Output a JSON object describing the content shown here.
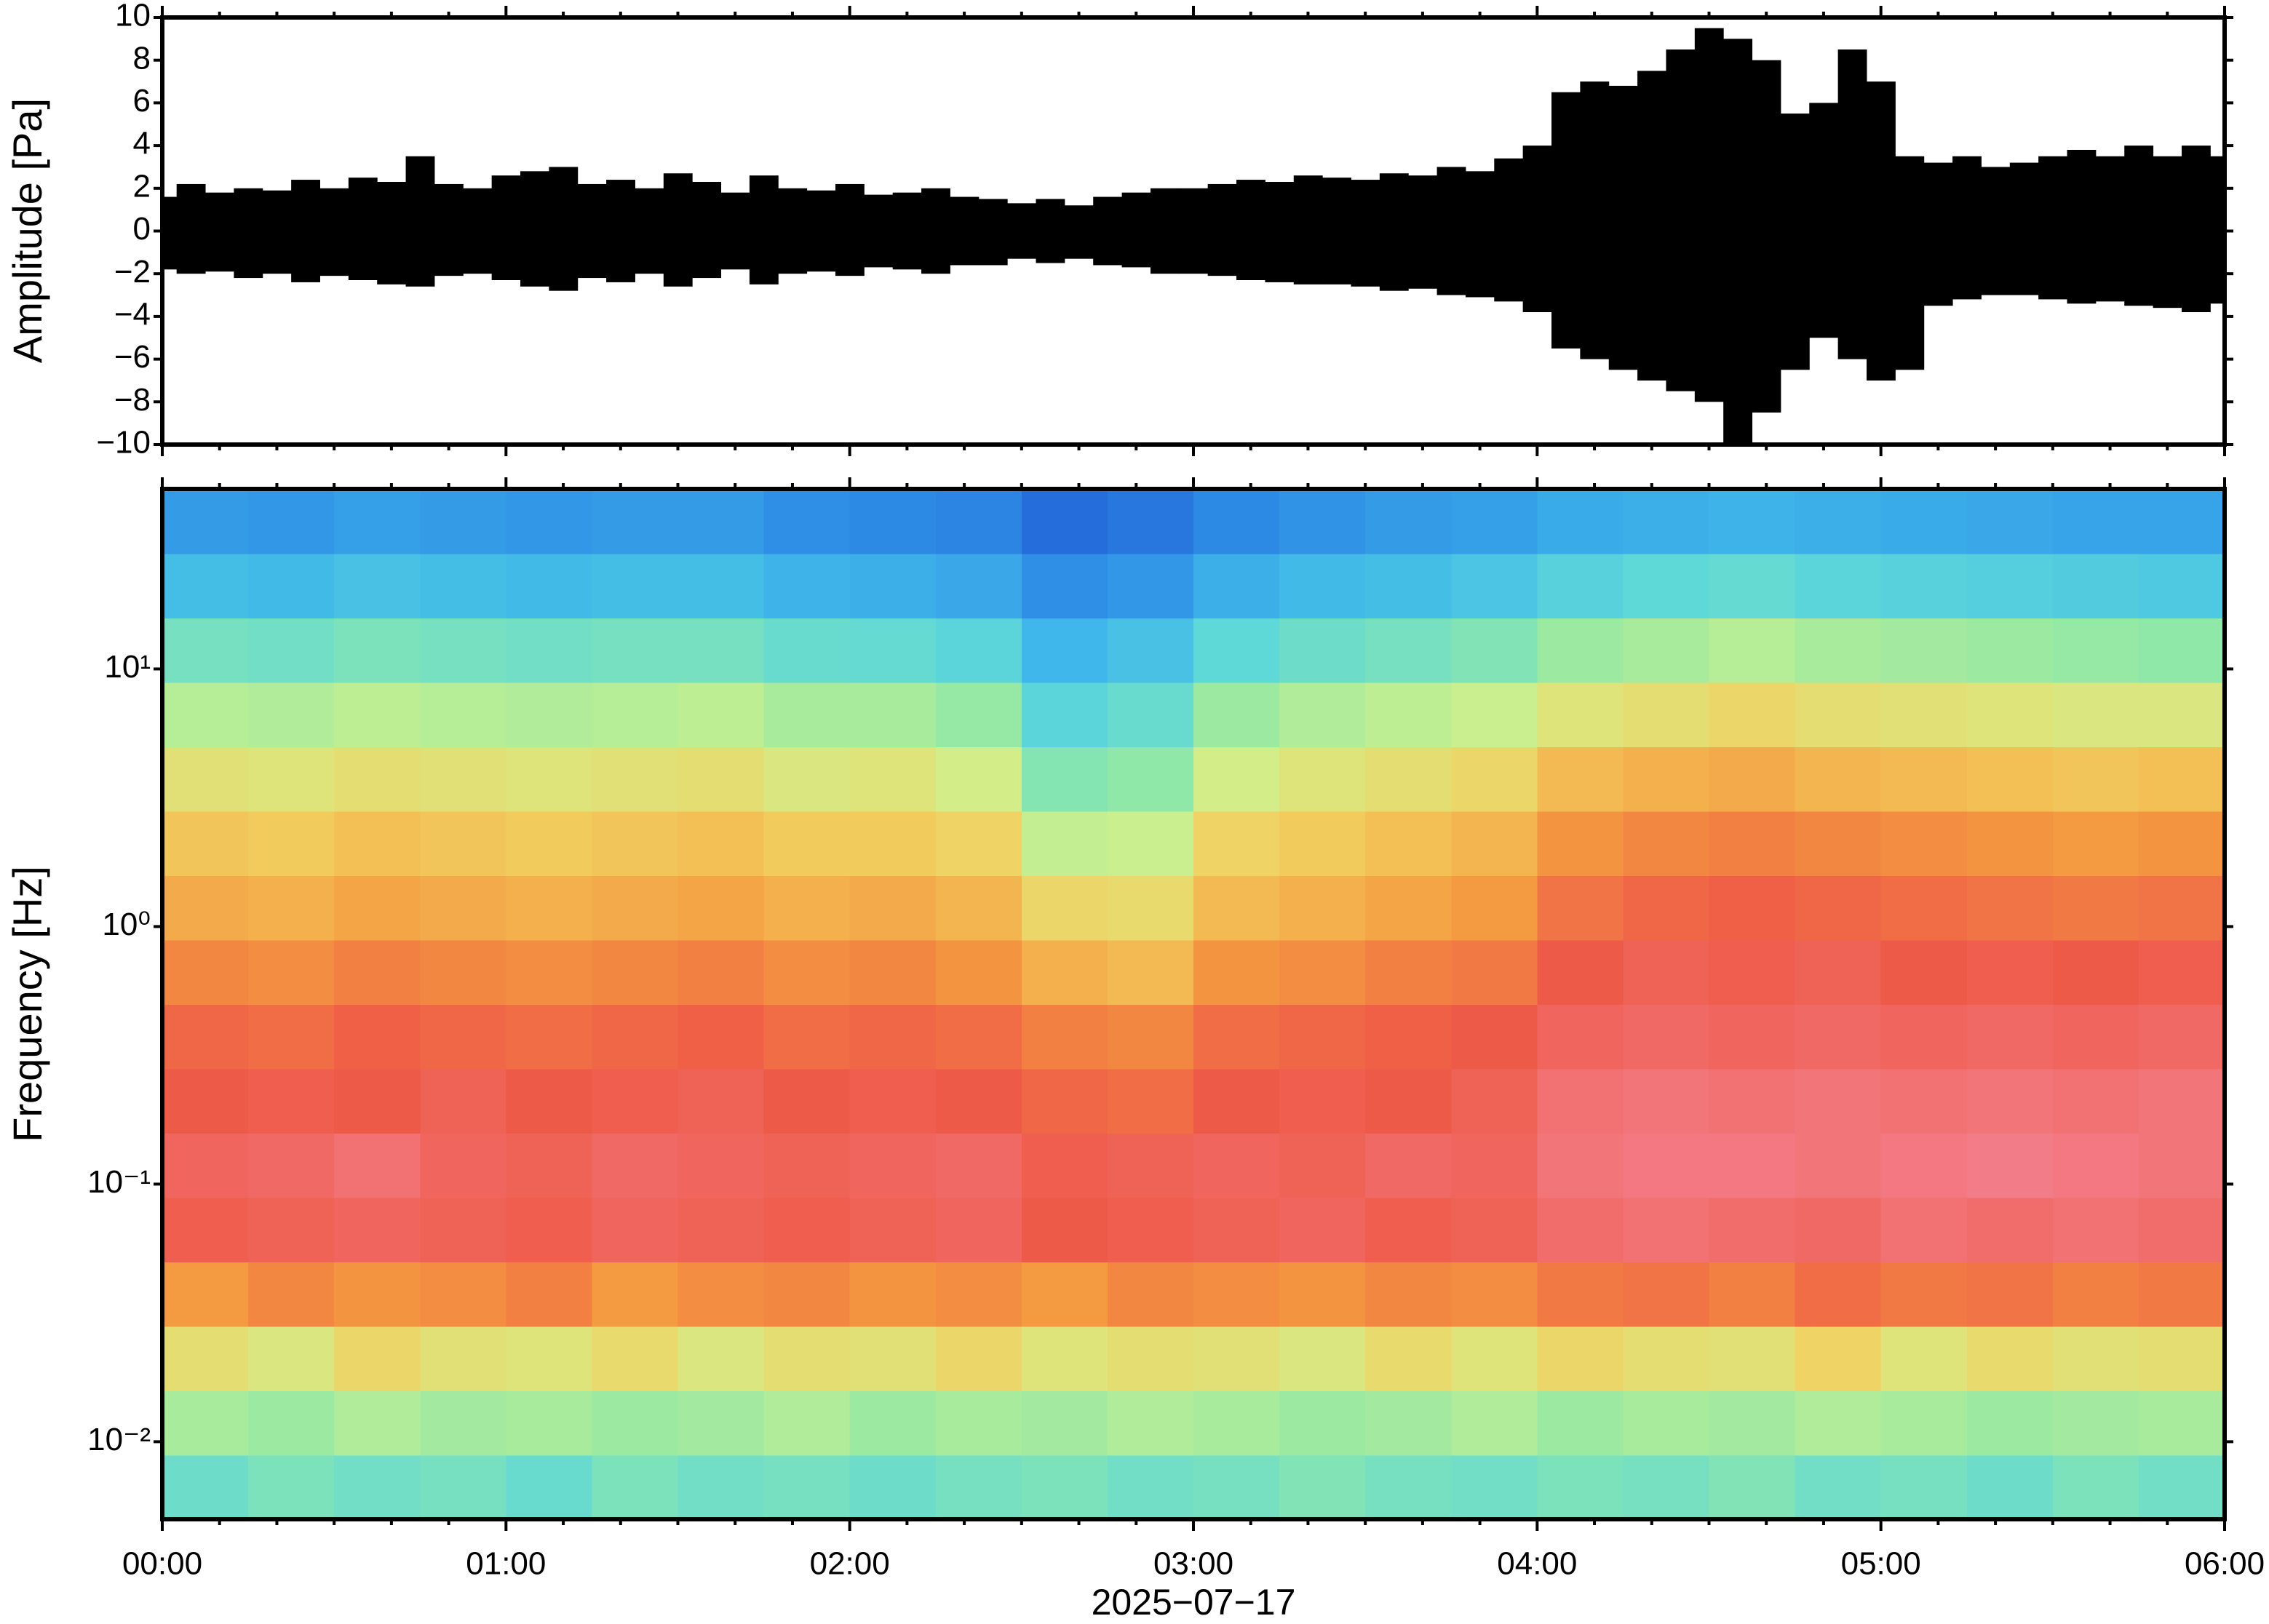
{
  "chart_data": [
    {
      "type": "waveform",
      "ylabel": "Amplitude [Pa]",
      "x": [
        0,
        5,
        10,
        15,
        20,
        25,
        30,
        35,
        40,
        45,
        50,
        55,
        60,
        65,
        70,
        75,
        80,
        85,
        90,
        95,
        100,
        105,
        110,
        115,
        120,
        125,
        130,
        135,
        140,
        145,
        150,
        155,
        160,
        165,
        170,
        175,
        180,
        185,
        190,
        195,
        200,
        205,
        210,
        215,
        220,
        225,
        230,
        235,
        240,
        245,
        250,
        255,
        260,
        265,
        270,
        275,
        280,
        285,
        290,
        295,
        300,
        305,
        310,
        315,
        320,
        325,
        330,
        335,
        340,
        345,
        350,
        355,
        360
      ],
      "series": [
        {
          "color": "#000000",
          "values": [
            1.6,
            2.2,
            1.8,
            2.0,
            1.9,
            2.4,
            2.0,
            2.5,
            2.3,
            3.5,
            2.2,
            2.0,
            2.6,
            2.8,
            3.0,
            2.2,
            2.4,
            2.0,
            2.7,
            2.3,
            1.8,
            2.6,
            2.0,
            1.9,
            2.2,
            1.7,
            1.8,
            2.0,
            1.6,
            1.5,
            1.3,
            1.5,
            1.2,
            1.6,
            1.8,
            2.0,
            2.0,
            2.2,
            2.4,
            2.3,
            2.6,
            2.5,
            2.4,
            2.7,
            2.6,
            3.0,
            2.8,
            3.4,
            4.0,
            6.5,
            7.0,
            6.8,
            7.5,
            8.5,
            9.5,
            9.0,
            8.0,
            5.5,
            6.0,
            8.5,
            7.0,
            3.5,
            3.2,
            3.5,
            3.0,
            3.2,
            3.5,
            3.8,
            3.5,
            4.0,
            3.5,
            4.0,
            3.5
          ]
        },
        {
          "color": "#000000",
          "values": [
            -1.8,
            -2.0,
            -1.9,
            -2.2,
            -2.0,
            -2.4,
            -2.1,
            -2.3,
            -2.5,
            -2.6,
            -2.1,
            -2.0,
            -2.3,
            -2.6,
            -2.8,
            -2.2,
            -2.4,
            -2.0,
            -2.6,
            -2.2,
            -1.8,
            -2.5,
            -2.0,
            -1.9,
            -2.1,
            -1.7,
            -1.8,
            -2.0,
            -1.6,
            -1.6,
            -1.3,
            -1.5,
            -1.3,
            -1.6,
            -1.7,
            -2.0,
            -2.0,
            -2.1,
            -2.3,
            -2.4,
            -2.5,
            -2.5,
            -2.6,
            -2.8,
            -2.7,
            -3.0,
            -3.1,
            -3.3,
            -3.8,
            -5.5,
            -6.0,
            -6.5,
            -7.0,
            -7.5,
            -8.0,
            -10.0,
            -8.5,
            -6.5,
            -5.0,
            -6.0,
            -7.0,
            -6.5,
            -3.5,
            -3.2,
            -3.0,
            -3.0,
            -3.2,
            -3.4,
            -3.3,
            -3.5,
            -3.6,
            -3.8,
            -3.4
          ]
        }
      ],
      "xlim": [
        0,
        360
      ],
      "xticks": [
        0,
        60,
        120,
        180,
        240,
        300,
        360
      ],
      "xminorticks": [
        10,
        20,
        30,
        40,
        50,
        70,
        80,
        90,
        100,
        110,
        130,
        140,
        150,
        160,
        170,
        190,
        200,
        210,
        220,
        230,
        250,
        260,
        270,
        280,
        290,
        310,
        320,
        330,
        340,
        350
      ],
      "ylim": [
        -10,
        10
      ],
      "yticks": [
        {
          "value": -10,
          "label": "−10"
        },
        {
          "value": -8,
          "label": "−8"
        },
        {
          "value": -6,
          "label": "−6"
        },
        {
          "value": -4,
          "label": "−4"
        },
        {
          "value": -2,
          "label": "−2"
        },
        0,
        2,
        4,
        6,
        8,
        10
      ]
    },
    {
      "type": "heatmap",
      "ylabel": "Frequency [Hz]",
      "xlabel": "2025−07−17",
      "xlim": [
        0,
        360
      ],
      "xticks": [
        {
          "value": 0,
          "label": "00:00"
        },
        {
          "value": 60,
          "label": "01:00"
        },
        {
          "value": 120,
          "label": "02:00"
        },
        {
          "value": 180,
          "label": "03:00"
        },
        {
          "value": 240,
          "label": "04:00"
        },
        {
          "value": 300,
          "label": "05:00"
        },
        {
          "value": 360,
          "label": "06:00"
        }
      ],
      "xminorticks": [
        10,
        20,
        30,
        40,
        50,
        70,
        80,
        90,
        100,
        110,
        130,
        140,
        150,
        160,
        170,
        190,
        200,
        210,
        220,
        230,
        250,
        260,
        270,
        280,
        290,
        310,
        320,
        330,
        340,
        350
      ],
      "ylim": [
        0.005,
        50
      ],
      "ylog": true,
      "yticks": [
        {
          "value": 0.01,
          "label": "10⁻²"
        },
        {
          "value": 0.1,
          "label": "10⁻¹"
        },
        {
          "value": 1,
          "label": "10⁰"
        },
        {
          "value": 10,
          "label": "10¹"
        }
      ],
      "x_edges": [
        0,
        15,
        30,
        45,
        60,
        75,
        90,
        105,
        120,
        135,
        150,
        165,
        180,
        195,
        210,
        225,
        240,
        255,
        270,
        285,
        300,
        315,
        330,
        345,
        360
      ],
      "y_edges": [
        0.005,
        0.0089,
        0.0158,
        0.0281,
        0.05,
        0.0889,
        0.158,
        0.281,
        0.5,
        0.889,
        1.58,
        2.81,
        5,
        8.89,
        15.8,
        28.1,
        50
      ],
      "colorscale": [
        "#0a1a8a",
        "#1f5fd6",
        "#2f8fe6",
        "#3fb7ea",
        "#5fd8d8",
        "#8fe8a8",
        "#d0f08c",
        "#f2d060",
        "#f49a40",
        "#ee5a48",
        "#f48090"
      ],
      "z": [
        [
          4.3,
          4.6,
          4.4,
          4.5,
          4.2,
          4.6,
          4.4,
          4.5,
          4.3,
          4.5,
          4.6,
          4.4,
          4.5,
          4.7,
          4.5,
          4.4,
          4.6,
          4.5,
          4.7,
          4.4,
          4.5,
          4.3,
          4.6,
          4.4
        ],
        [
          5.4,
          5.2,
          5.5,
          5.3,
          5.4,
          5.2,
          5.3,
          5.5,
          5.2,
          5.4,
          5.3,
          5.5,
          5.4,
          5.2,
          5.3,
          5.5,
          5.2,
          5.4,
          5.3,
          5.5,
          5.4,
          5.2,
          5.3,
          5.4
        ],
        [
          6.6,
          6.3,
          6.8,
          6.5,
          6.4,
          6.7,
          6.3,
          6.6,
          6.5,
          6.8,
          6.4,
          6.6,
          6.5,
          6.3,
          6.7,
          6.4,
          6.8,
          6.6,
          6.5,
          6.9,
          6.4,
          6.7,
          6.5,
          6.6
        ],
        [
          8.0,
          8.3,
          8.1,
          8.2,
          8.4,
          8.0,
          8.2,
          8.3,
          8.1,
          8.2,
          8.0,
          8.3,
          8.2,
          8.1,
          8.3,
          8.2,
          8.5,
          8.6,
          8.4,
          8.7,
          8.5,
          8.6,
          8.4,
          8.5
        ],
        [
          9.1,
          9.2,
          9.3,
          9.2,
          9.1,
          9.3,
          9.2,
          9.1,
          9.2,
          9.3,
          9.0,
          9.1,
          9.2,
          9.3,
          9.1,
          9.2,
          9.5,
          9.6,
          9.5,
          9.4,
          9.6,
          9.5,
          9.6,
          9.5
        ],
        [
          9.3,
          9.4,
          9.6,
          9.3,
          9.2,
          9.4,
          9.3,
          9.2,
          9.3,
          9.4,
          9.1,
          9.2,
          9.3,
          9.2,
          9.4,
          9.3,
          9.7,
          9.8,
          9.8,
          9.7,
          9.8,
          9.9,
          9.8,
          9.7
        ],
        [
          9.0,
          9.1,
          9.0,
          9.2,
          9.0,
          9.1,
          9.2,
          9.0,
          9.1,
          9.0,
          8.8,
          8.7,
          9.0,
          9.1,
          9.0,
          9.2,
          9.6,
          9.7,
          9.6,
          9.7,
          9.6,
          9.7,
          9.6,
          9.7
        ],
        [
          8.8,
          8.7,
          8.9,
          8.8,
          8.7,
          8.8,
          8.9,
          8.7,
          8.8,
          8.7,
          8.4,
          8.3,
          8.7,
          8.8,
          8.9,
          9.0,
          9.3,
          9.4,
          9.3,
          9.4,
          9.3,
          9.4,
          9.3,
          9.4
        ],
        [
          8.3,
          8.2,
          8.4,
          8.3,
          8.2,
          8.3,
          8.4,
          8.2,
          8.3,
          8.1,
          7.6,
          7.4,
          8.1,
          8.2,
          8.4,
          8.5,
          9.0,
          9.2,
          9.1,
          9.2,
          9.0,
          9.1,
          9.0,
          9.1
        ],
        [
          7.7,
          7.6,
          7.8,
          7.7,
          7.6,
          7.7,
          7.8,
          7.6,
          7.7,
          7.5,
          6.8,
          6.7,
          7.4,
          7.6,
          7.8,
          8.0,
          8.6,
          8.8,
          8.9,
          8.8,
          8.7,
          8.6,
          8.5,
          8.6
        ],
        [
          7.2,
          7.1,
          7.3,
          7.2,
          7.1,
          7.2,
          7.3,
          7.1,
          7.1,
          6.9,
          5.8,
          5.9,
          6.9,
          7.1,
          7.3,
          7.5,
          8.1,
          8.3,
          8.4,
          8.3,
          8.2,
          8.1,
          8.0,
          8.1
        ],
        [
          6.5,
          6.4,
          6.6,
          6.5,
          6.4,
          6.5,
          6.6,
          6.3,
          6.4,
          6.1,
          4.8,
          5.0,
          6.1,
          6.4,
          6.6,
          6.8,
          7.4,
          7.6,
          7.7,
          7.5,
          7.4,
          7.3,
          7.2,
          7.3
        ],
        [
          5.6,
          5.5,
          5.7,
          5.6,
          5.5,
          5.6,
          5.7,
          5.4,
          5.4,
          5.1,
          3.9,
          4.2,
          5.2,
          5.5,
          5.7,
          5.9,
          6.4,
          6.6,
          6.8,
          6.6,
          6.5,
          6.4,
          6.3,
          6.3
        ],
        [
          4.5,
          4.4,
          4.6,
          4.5,
          4.4,
          4.5,
          4.5,
          4.2,
          4.1,
          3.9,
          3.0,
          3.3,
          4.0,
          4.3,
          4.5,
          4.7,
          5.2,
          5.4,
          5.6,
          5.4,
          5.3,
          5.2,
          5.1,
          5.0
        ],
        [
          3.2,
          3.1,
          3.3,
          3.2,
          3.1,
          3.2,
          3.2,
          2.9,
          2.8,
          2.6,
          2.0,
          2.2,
          2.8,
          3.1,
          3.2,
          3.4,
          3.8,
          4.0,
          4.1,
          3.9,
          3.8,
          3.7,
          3.6,
          3.5
        ],
        [
          2.3,
          2.2,
          2.4,
          2.3,
          2.2,
          2.3,
          2.3,
          2.0,
          1.9,
          1.8,
          1.3,
          1.5,
          1.9,
          2.1,
          2.3,
          2.4,
          2.7,
          2.8,
          2.9,
          2.8,
          2.7,
          2.6,
          2.5,
          2.5
        ]
      ]
    }
  ]
}
